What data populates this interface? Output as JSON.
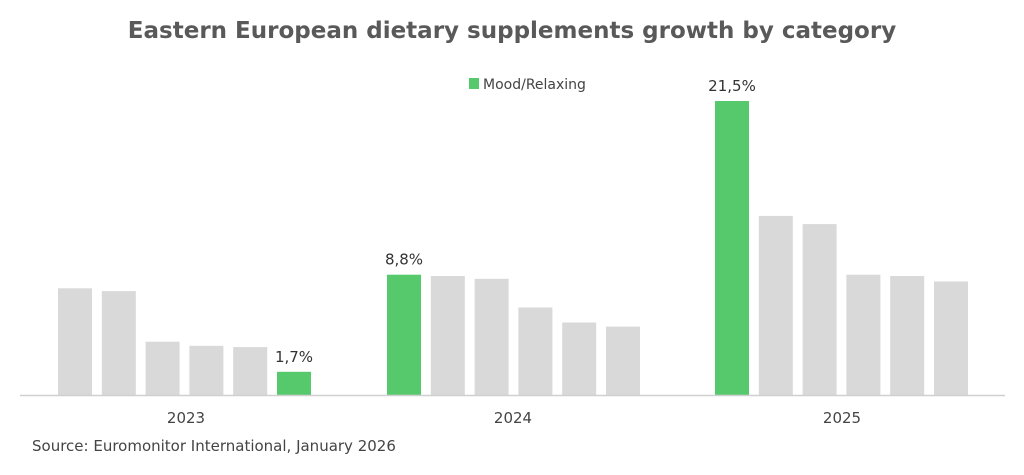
{
  "chart_data": {
    "type": "bar",
    "title": "Eastern European dietary supplements growth by category",
    "xlabel": "",
    "ylabel": "",
    "ylim": [
      0,
      22
    ],
    "grid": false,
    "legend": {
      "placement": "top-center",
      "entries": [
        {
          "name": "Mood/Relaxing",
          "color": "#57c96d"
        }
      ]
    },
    "categories": [
      "2023",
      "2024",
      "2025"
    ],
    "highlight_series": "Mood/Relaxing",
    "groups": [
      {
        "year": "2023",
        "bars": [
          {
            "series": "Other category",
            "value": 7.8
          },
          {
            "series": "Other category",
            "value": 7.6
          },
          {
            "series": "Other category",
            "value": 3.9
          },
          {
            "series": "Other category",
            "value": 3.6
          },
          {
            "series": "Other category",
            "value": 3.5
          },
          {
            "series": "Mood/Relaxing",
            "value": 1.7,
            "label": "1,7%"
          }
        ]
      },
      {
        "year": "2024",
        "bars": [
          {
            "series": "Mood/Relaxing",
            "value": 8.8,
            "label": "8,8%"
          },
          {
            "series": "Other category",
            "value": 8.7
          },
          {
            "series": "Other category",
            "value": 8.5
          },
          {
            "series": "Other category",
            "value": 6.4
          },
          {
            "series": "Other category",
            "value": 5.3
          },
          {
            "series": "Other category",
            "value": 5.0
          }
        ]
      },
      {
        "year": "2025",
        "bars": [
          {
            "series": "Mood/Relaxing",
            "value": 21.5,
            "label": "21,5%"
          },
          {
            "series": "Other category",
            "value": 13.1
          },
          {
            "series": "Other category",
            "value": 12.5
          },
          {
            "series": "Other category",
            "value": 8.8
          },
          {
            "series": "Other category",
            "value": 8.7
          },
          {
            "series": "Other category",
            "value": 8.3
          }
        ]
      }
    ],
    "colors": {
      "highlight": "#57c96d",
      "other": "#d9d9d9",
      "axis": "#d0d0d0"
    }
  },
  "source": "Source: Euromonitor International, January 2026"
}
